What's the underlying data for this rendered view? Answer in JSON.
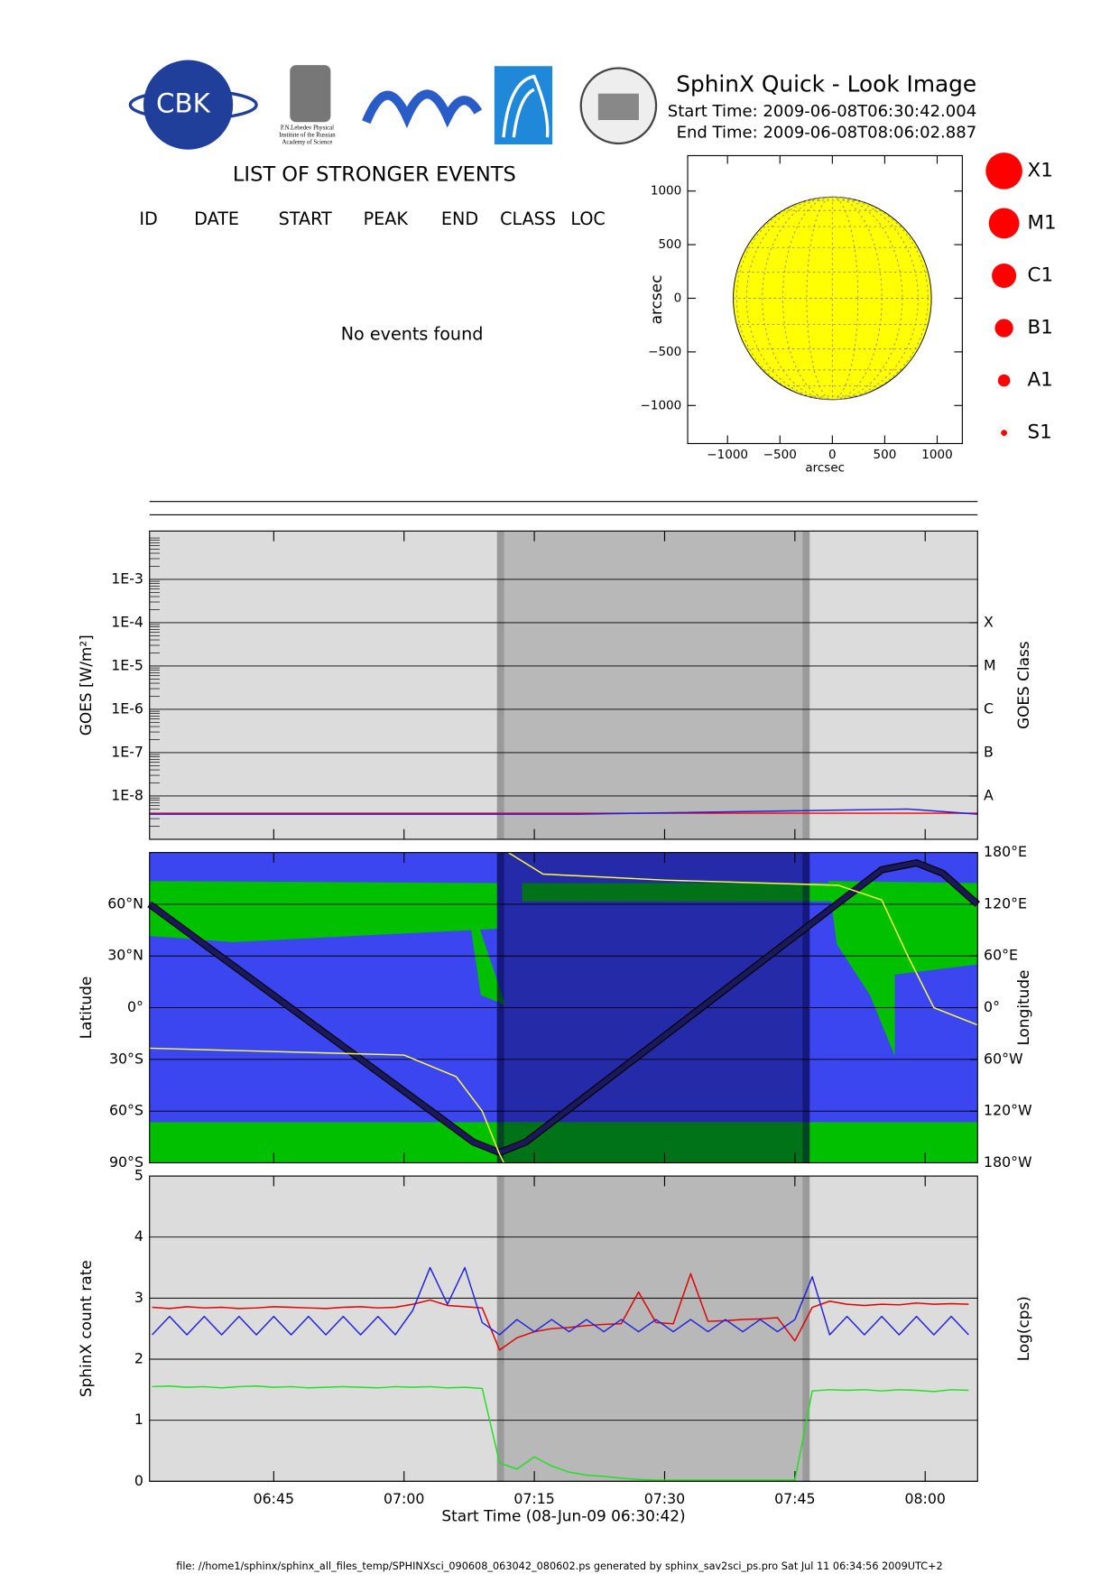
{
  "header": {
    "title": "SphinX Quick - Look Image",
    "start_time": "Start Time: 2009-06-08T06:30:42.004",
    "end_time": "End Time: 2009-06-08T08:06:02.887",
    "logo_text": "CBK",
    "logo_caption": [
      "P.N.Lebedev Physical",
      "Institute of the Russian",
      "Academy of Science"
    ]
  },
  "events": {
    "title": "LIST OF STRONGER EVENTS",
    "columns": [
      "ID",
      "DATE",
      "START",
      "PEAK",
      "END",
      "CLASS",
      "LOC"
    ],
    "message": "No events found"
  },
  "legend": {
    "items": [
      "X1",
      "M1",
      "C1",
      "B1",
      "A1",
      "S1"
    ],
    "color": "#ff0000"
  },
  "footer": "file: //home1/sphinx/sphinx_all_files_temp/SPHINXsci_090608_063042_080602.ps generated by sphinx_sav2sci_ps.pro Sat Jul 11 06:34:56 2009UTC+2",
  "chart_data": [
    {
      "type": "disk",
      "xlabel": "arcsec",
      "ylabel": "arcsec",
      "radius": 945,
      "color": "#ffff00",
      "xlim": [
        -1380,
        1240
      ],
      "ylim": [
        -1355,
        1330
      ],
      "xticks": [
        {
          "value": -1000,
          "label": "−1000"
        },
        {
          "value": -500,
          "label": "−500"
        },
        0,
        500,
        1000
      ],
      "yticks": [
        {
          "value": -1000,
          "label": "−1000"
        },
        {
          "value": -500,
          "label": "−500"
        },
        0,
        500,
        1000
      ]
    },
    {
      "type": "line",
      "ylabel": "GOES [W/m²]",
      "y2label": "GOES Class",
      "log": true,
      "background": "#dcdcdc",
      "shade_color": "rgba(0,0,0,0.16)",
      "shaded": [
        "07:10:42",
        "07:46:42"
      ],
      "xlim": [
        "06:30:42",
        "08:06:02"
      ],
      "ylim": [
        1e-09,
        0.013
      ],
      "y2lim": [
        1e-09,
        0.013
      ],
      "yticks": [
        {
          "value": 0.001,
          "label": "1E-3"
        },
        {
          "value": 0.0001,
          "label": "1E-4"
        },
        {
          "value": 1e-05,
          "label": "1E-5"
        },
        {
          "value": 1e-06,
          "label": "1E-6"
        },
        {
          "value": 1e-07,
          "label": "1E-7"
        },
        {
          "value": 1e-08,
          "label": "1E-8"
        }
      ],
      "y2ticks": [
        {
          "value": 0.0001,
          "label": "X"
        },
        {
          "value": 1e-05,
          "label": "M"
        },
        {
          "value": 1e-06,
          "label": "C"
        },
        {
          "value": 1e-07,
          "label": "B"
        },
        {
          "value": 1e-08,
          "label": "A"
        }
      ],
      "x": [
        "06:30:42",
        "07:20",
        "07:58",
        "08:06:02"
      ],
      "series": [
        {
          "color": "#ff0000",
          "values": [
            4e-09,
            4e-09,
            4e-09,
            4e-09
          ]
        },
        {
          "color": "#2020e0",
          "values": [
            3.8e-09,
            3.8e-09,
            5e-09,
            3.8e-09
          ]
        }
      ]
    },
    {
      "type": "map",
      "ylabel": "Latitude",
      "y2label": "Longitude",
      "background": "#3c46f0",
      "land": "#00c000",
      "shade_color": "rgba(0,0,60,0.4)",
      "shaded": [
        "07:10:42",
        "07:46:42"
      ],
      "xlim": [
        "06:30:42",
        "08:06:02"
      ],
      "ylim": [
        -90,
        90
      ],
      "y2lim": [
        -180,
        180
      ],
      "yticks": [
        {
          "value": -90,
          "label": "90°S"
        },
        {
          "value": -60,
          "label": "60°S"
        },
        {
          "value": -30,
          "label": "30°S"
        },
        {
          "value": 0,
          "label": "0°"
        },
        {
          "value": 30,
          "label": "30°N"
        },
        {
          "value": 60,
          "label": "60°N"
        }
      ],
      "y2ticks": [
        {
          "value": -180,
          "label": "180°W"
        },
        {
          "value": -120,
          "label": "120°W"
        },
        {
          "value": -60,
          "label": "60°W"
        },
        {
          "value": 0,
          "label": "0°"
        },
        {
          "value": 60,
          "label": "60°E"
        },
        {
          "value": 120,
          "label": "120°E"
        },
        {
          "value": 180,
          "label": "180°E"
        }
      ],
      "series": [
        {
          "color": "#1a1a5a",
          "x": [
            "06:30:42",
            "07:08",
            "07:11",
            "07:14",
            "07:55",
            "07:59",
            "08:02",
            "08:06:02"
          ],
          "values": [
            60,
            -78,
            -84,
            -78,
            80,
            84,
            78,
            60
          ]
        },
        {
          "color": "#ffff40",
          "axis": "y2",
          "x": [
            "06:30:42",
            "07:00",
            "07:06",
            "07:09",
            "07:11",
            "07:11:30",
            "07:11:30",
            "07:12",
            "07:16",
            "07:30",
            "07:50",
            "07:55",
            "07:58",
            "08:01",
            "08:06:02"
          ],
          "values": [
            -47,
            -55,
            -80,
            -120,
            -170,
            -180,
            null,
            180,
            155,
            148,
            142,
            125,
            60,
            0,
            -20
          ]
        }
      ]
    },
    {
      "type": "line",
      "ylabel": "SphinX count rate",
      "y2label": "Log(cps)",
      "xlabel": "Start Time (08-Jun-09 06:30:42)",
      "background": "#dcdcdc",
      "shade_color": "rgba(0,0,0,0.16)",
      "shaded": [
        "07:10:42",
        "07:46:42"
      ],
      "xlim": [
        "06:30:42",
        "08:06:02"
      ],
      "ylim": [
        0,
        5
      ],
      "yticks": [
        0,
        1,
        2,
        3,
        4,
        5
      ],
      "xticks": [
        "06:45",
        "07:00",
        "07:15",
        "07:30",
        "07:45",
        "08:00"
      ],
      "x": [
        "06:31",
        "06:33",
        "06:35",
        "06:37",
        "06:39",
        "06:41",
        "06:43",
        "06:45",
        "06:47",
        "06:49",
        "06:51",
        "06:53",
        "06:55",
        "06:57",
        "06:59",
        "07:01",
        "07:03",
        "07:05",
        "07:07",
        "07:09",
        "07:11",
        "07:13",
        "07:15",
        "07:17",
        "07:19",
        "07:21",
        "07:23",
        "07:25",
        "07:27",
        "07:29",
        "07:31",
        "07:33",
        "07:35",
        "07:37",
        "07:39",
        "07:41",
        "07:43",
        "07:45",
        "07:47",
        "07:49",
        "07:51",
        "07:53",
        "07:55",
        "07:57",
        "07:59",
        "08:01",
        "08:03",
        "08:05"
      ],
      "series": [
        {
          "color": "#e00000",
          "values": [
            2.85,
            2.83,
            2.86,
            2.84,
            2.85,
            2.83,
            2.84,
            2.86,
            2.85,
            2.84,
            2.83,
            2.85,
            2.86,
            2.84,
            2.85,
            2.9,
            2.97,
            2.88,
            2.86,
            2.84,
            2.15,
            2.35,
            2.45,
            2.5,
            2.52,
            2.55,
            2.57,
            2.58,
            3.1,
            2.6,
            2.58,
            3.4,
            2.62,
            2.63,
            2.65,
            2.66,
            2.68,
            2.3,
            2.85,
            2.95,
            2.9,
            2.88,
            2.9,
            2.89,
            2.92,
            2.9,
            2.91,
            2.9
          ]
        },
        {
          "color": "#2020e0",
          "values": [
            2.4,
            2.7,
            2.4,
            2.7,
            2.4,
            2.7,
            2.4,
            2.7,
            2.4,
            2.7,
            2.4,
            2.7,
            2.4,
            2.7,
            2.4,
            2.8,
            3.5,
            2.9,
            3.5,
            2.6,
            2.4,
            2.65,
            2.45,
            2.65,
            2.45,
            2.65,
            2.45,
            2.65,
            2.45,
            2.65,
            2.45,
            2.65,
            2.45,
            2.65,
            2.45,
            2.65,
            2.45,
            2.65,
            3.35,
            2.4,
            2.7,
            2.4,
            2.7,
            2.4,
            2.7,
            2.4,
            2.7,
            2.4
          ]
        },
        {
          "color": "#20e020",
          "values": [
            1.55,
            1.56,
            1.54,
            1.55,
            1.53,
            1.55,
            1.56,
            1.54,
            1.55,
            1.53,
            1.54,
            1.55,
            1.54,
            1.53,
            1.55,
            1.54,
            1.55,
            1.53,
            1.54,
            1.52,
            0.3,
            0.2,
            0.4,
            0.25,
            0.15,
            0.1,
            0.08,
            0.05,
            0.03,
            0.02,
            0.02,
            0.02,
            0.02,
            0.02,
            0.02,
            0.02,
            0.02,
            0.02,
            1.48,
            1.5,
            1.49,
            1.5,
            1.48,
            1.5,
            1.49,
            1.47,
            1.5,
            1.49
          ]
        }
      ]
    }
  ]
}
